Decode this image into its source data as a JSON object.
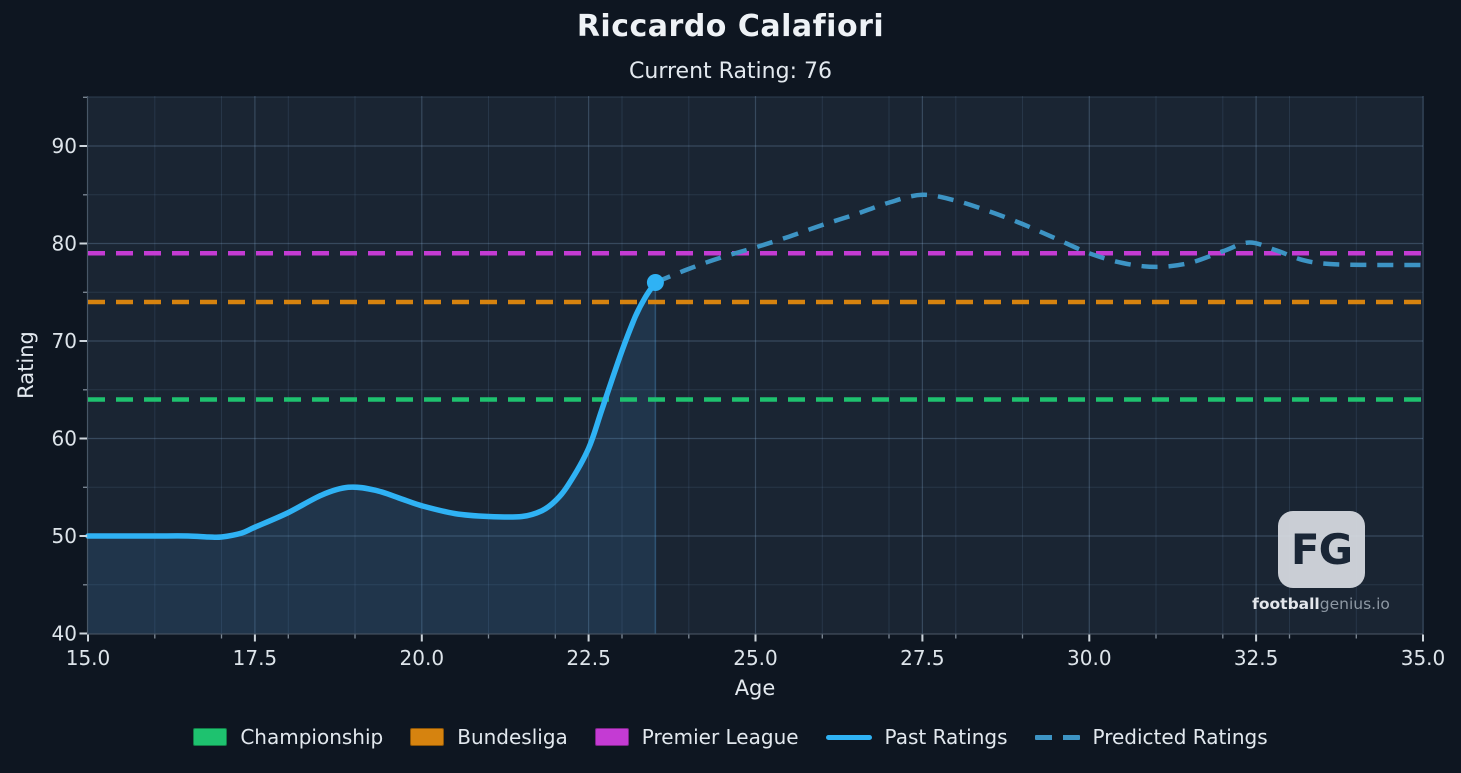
{
  "header": {
    "title": "Riccardo Calafiori",
    "subtitle": "Current Rating: 76"
  },
  "chart_data": {
    "type": "line",
    "xlabel": "Age",
    "ylabel": "Rating",
    "xlim": [
      15,
      35
    ],
    "ylim": [
      40,
      95.13
    ],
    "x_ticks": {
      "major": [
        15,
        17.5,
        20,
        22.5,
        25,
        27.5,
        30,
        32.5,
        35
      ],
      "labels": [
        "15.0",
        "17.5",
        "20.0",
        "22.5",
        "25.0",
        "27.5",
        "30.0",
        "32.5",
        "35.0"
      ],
      "minor_step": 1
    },
    "y_ticks": {
      "major": [
        40,
        50,
        60,
        70,
        80,
        90
      ],
      "labels": [
        "40",
        "50",
        "60",
        "70",
        "80",
        "90"
      ],
      "minor": [
        45,
        55,
        65,
        75,
        85,
        95
      ]
    },
    "grid": {
      "show": true
    },
    "reference_lines": [
      {
        "name": "Championship",
        "value": 64,
        "color": "#1ec26f",
        "style": "dashed"
      },
      {
        "name": "Bundesliga",
        "value": 74,
        "color": "#d6830f",
        "style": "dashed"
      },
      {
        "name": "Premier League",
        "value": 79,
        "color": "#c43bd3",
        "style": "dashed"
      }
    ],
    "series": [
      {
        "name": "Past Ratings",
        "style": "solid",
        "color": "#2fb2f4",
        "fill": true,
        "points": [
          [
            15,
            50
          ],
          [
            15.5,
            50
          ],
          [
            16,
            50
          ],
          [
            16.5,
            50
          ],
          [
            16.8,
            49.9
          ],
          [
            17,
            49.9
          ],
          [
            17.3,
            50.3
          ],
          [
            17.5,
            50.9
          ],
          [
            18,
            52.4
          ],
          [
            18.5,
            54.2
          ],
          [
            18.9,
            55
          ],
          [
            19.3,
            54.7
          ],
          [
            19.7,
            53.8
          ],
          [
            20,
            53.1
          ],
          [
            20.5,
            52.3
          ],
          [
            21,
            52
          ],
          [
            21.5,
            52
          ],
          [
            21.8,
            52.6
          ],
          [
            22,
            53.6
          ],
          [
            22.2,
            55.3
          ],
          [
            22.5,
            59
          ],
          [
            22.7,
            63
          ],
          [
            23,
            69
          ],
          [
            23.2,
            72.5
          ],
          [
            23.35,
            74.5
          ],
          [
            23.5,
            76
          ]
        ]
      },
      {
        "name": "Predicted Ratings",
        "style": "dashed",
        "color": "#3d94c4",
        "points": [
          [
            23.5,
            76
          ],
          [
            24,
            77.4
          ],
          [
            24.5,
            78.6
          ],
          [
            25,
            79.6
          ],
          [
            25.5,
            80.7
          ],
          [
            26,
            81.9
          ],
          [
            26.5,
            83
          ],
          [
            27,
            84.2
          ],
          [
            27.5,
            85
          ],
          [
            28,
            84.4
          ],
          [
            28.5,
            83.3
          ],
          [
            29,
            82
          ],
          [
            29.5,
            80.5
          ],
          [
            30,
            79
          ],
          [
            30.5,
            78
          ],
          [
            31,
            77.6
          ],
          [
            31.5,
            78
          ],
          [
            32,
            79.2
          ],
          [
            32.4,
            80.1
          ],
          [
            32.8,
            79.3
          ],
          [
            33.2,
            78.3
          ],
          [
            33.6,
            77.9
          ],
          [
            34.3,
            77.8
          ],
          [
            35,
            77.8
          ]
        ]
      }
    ],
    "current_point": {
      "age": 23.5,
      "rating": 76
    },
    "legend_position": "bottom"
  },
  "legend": {
    "items": [
      {
        "label": "Championship",
        "swatch": "patch",
        "color": "#1ec26f"
      },
      {
        "label": "Bundesliga",
        "swatch": "patch",
        "color": "#d6830f"
      },
      {
        "label": "Premier League",
        "swatch": "patch",
        "color": "#c43bd3"
      },
      {
        "label": "Past Ratings",
        "swatch": "line",
        "color": "#2fb2f4"
      },
      {
        "label": "Predicted Ratings",
        "swatch": "dashed-line",
        "color": "#3d94c4"
      }
    ]
  },
  "watermark": {
    "monogram": "FG",
    "brand_bold": "football",
    "brand_light": "genius.io"
  },
  "colors": {
    "figure_bg": "#0e1621",
    "plot_bg": "#1a2533",
    "area_fill": "rgba(70,150,215,0.15)",
    "grid_minor": "rgba(130,170,215,0.13)",
    "grid_major": "rgba(150,190,230,0.24)",
    "spine": "rgba(160,180,200,0.35)",
    "tick_major": "#cdd5dc",
    "tick_minor": "#7e8a97",
    "tick_text": "#dde4ea"
  }
}
